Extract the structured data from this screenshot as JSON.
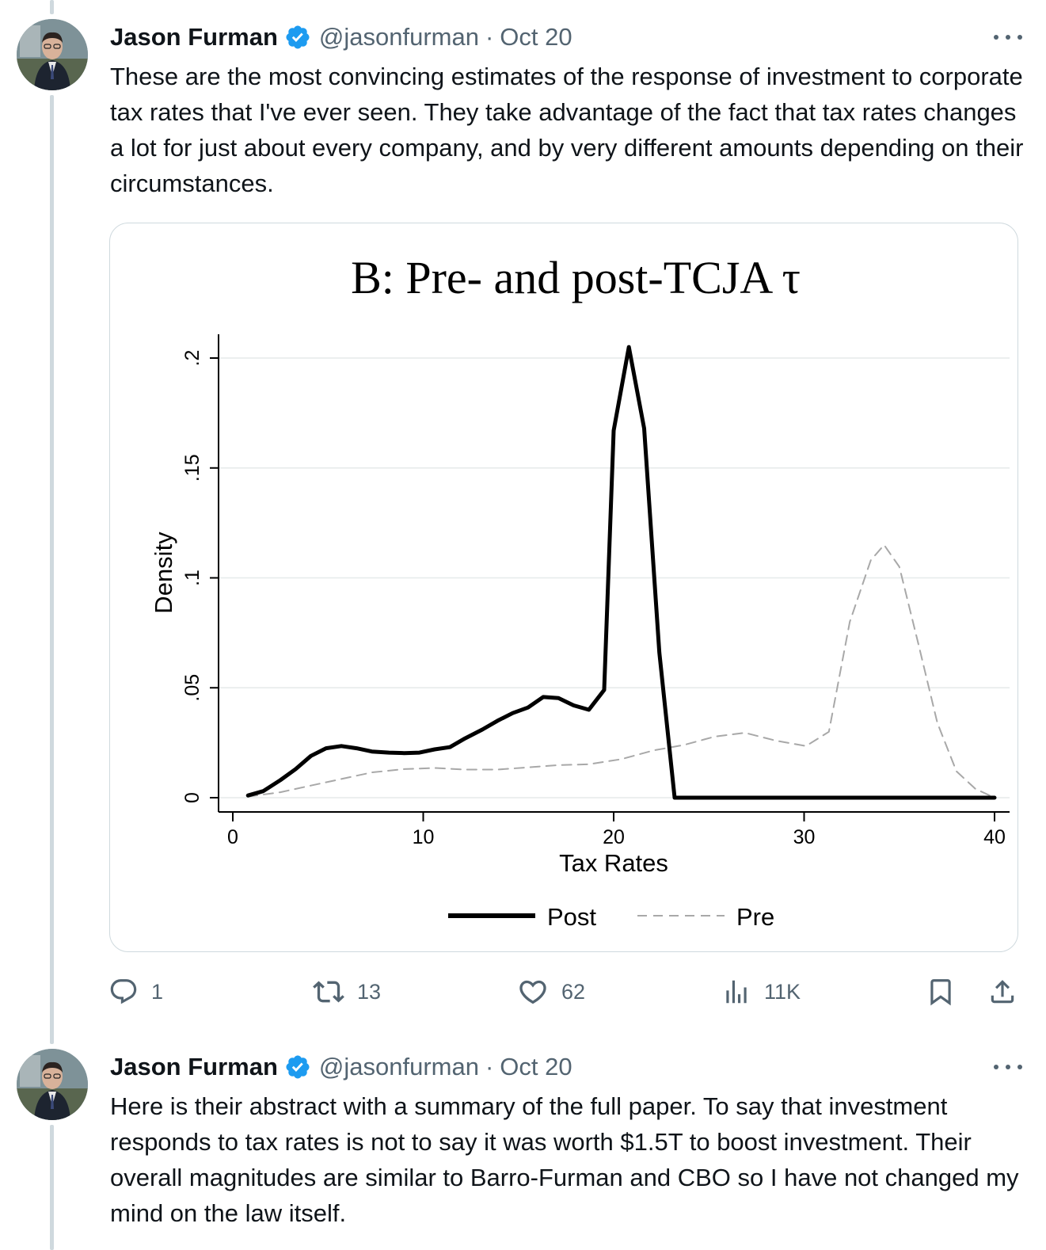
{
  "tweets": [
    {
      "author": {
        "name": "Jason Furman",
        "handle": "@jasonfurman",
        "verified": true
      },
      "date": "Oct 20",
      "text": "These are the most convincing estimates of the response of investment to corporate tax rates that I've ever seen. They take advantage of the fact that tax rates changes a lot for just about every company, and by very different amounts depending on their circumstances.",
      "metrics": {
        "replies": "1",
        "reposts": "13",
        "likes": "62",
        "views": "11K"
      },
      "media": {
        "chart_data": {
          "type": "line",
          "title": "B: Pre- and post-TCJA τ",
          "xlabel": "Tax Rates",
          "ylabel": "Density",
          "xlim": [
            0,
            40
          ],
          "ylim": [
            0,
            0.2
          ],
          "x_ticks": [
            "0",
            "10",
            "20",
            "30",
            "40"
          ],
          "y_ticks": [
            "0",
            ".05",
            ".1",
            ".15",
            ".2"
          ],
          "grid": true,
          "legend_position": "bottom",
          "series": [
            {
              "name": "Post",
              "style": "solid",
              "color": "#000000",
              "points": [
                [
                  0.8,
                  0.001
                ],
                [
                  1.6,
                  0.003
                ],
                [
                  2.5,
                  0.008
                ],
                [
                  3.3,
                  0.013
                ],
                [
                  4.1,
                  0.019
                ],
                [
                  4.9,
                  0.0225
                ],
                [
                  5.7,
                  0.0235
                ],
                [
                  6.5,
                  0.0225
                ],
                [
                  7.3,
                  0.021
                ],
                [
                  8.2,
                  0.0205
                ],
                [
                  9,
                  0.0203
                ],
                [
                  9.8,
                  0.0205
                ],
                [
                  10.6,
                  0.022
                ],
                [
                  11.4,
                  0.023
                ],
                [
                  12.2,
                  0.027
                ],
                [
                  13.1,
                  0.031
                ],
                [
                  13.9,
                  0.035
                ],
                [
                  14.7,
                  0.0385
                ],
                [
                  15.5,
                  0.041
                ],
                [
                  16.3,
                  0.0458
                ],
                [
                  17.1,
                  0.0453
                ],
                [
                  17.9,
                  0.042
                ],
                [
                  18.7,
                  0.04
                ],
                [
                  19.5,
                  0.049
                ],
                [
                  20,
                  0.167
                ],
                [
                  20.8,
                  0.205
                ],
                [
                  21.6,
                  0.168
                ],
                [
                  22.4,
                  0.066
                ],
                [
                  23.2,
                  0
                ],
                [
                  24,
                  0
                ],
                [
                  30,
                  0
                ],
                [
                  40,
                  0
                ]
              ]
            },
            {
              "name": "Pre",
              "style": "dashed",
              "color": "#a8a8a8",
              "points": [
                [
                  0.8,
                  0.0005
                ],
                [
                  2.5,
                  0.0025
                ],
                [
                  4.1,
                  0.0055
                ],
                [
                  5.7,
                  0.0085
                ],
                [
                  7.3,
                  0.0115
                ],
                [
                  9,
                  0.013
                ],
                [
                  10.6,
                  0.0135
                ],
                [
                  12.2,
                  0.0128
                ],
                [
                  13.9,
                  0.0128
                ],
                [
                  15.5,
                  0.0138
                ],
                [
                  17.1,
                  0.0148
                ],
                [
                  18.7,
                  0.0152
                ],
                [
                  20.4,
                  0.0175
                ],
                [
                  22.1,
                  0.0215
                ],
                [
                  23.7,
                  0.024
                ],
                [
                  25.3,
                  0.0278
                ],
                [
                  26.9,
                  0.0295
                ],
                [
                  28.5,
                  0.026
                ],
                [
                  30.1,
                  0.0235
                ],
                [
                  31.3,
                  0.03
                ],
                [
                  32.4,
                  0.08
                ],
                [
                  33.5,
                  0.108
                ],
                [
                  34.2,
                  0.115
                ],
                [
                  35,
                  0.105
                ],
                [
                  36,
                  0.07
                ],
                [
                  37,
                  0.034
                ],
                [
                  38,
                  0.012
                ],
                [
                  39,
                  0.004
                ],
                [
                  40,
                  0
                ]
              ]
            }
          ]
        }
      }
    },
    {
      "author": {
        "name": "Jason Furman",
        "handle": "@jasonfurman",
        "verified": true
      },
      "date": "Oct 20",
      "text": "Here is their abstract with a summary of the full paper. To say that investment responds to tax rates is not to say it was worth $1.5T to boost investment. Their overall magnitudes are similar to Barro-Furman and CBO so I have not changed my mind on the law itself."
    }
  ],
  "icons": {
    "verified": "verified-badge-icon",
    "more": "more-options-icon",
    "reply": "reply-icon",
    "repost": "repost-icon",
    "like": "heart-icon",
    "views": "views-icon",
    "bookmark": "bookmark-icon",
    "share": "share-icon"
  },
  "colors": {
    "verified": "#1d9bf0",
    "secondary_text": "#536471",
    "thread_line": "#cfd9de"
  }
}
